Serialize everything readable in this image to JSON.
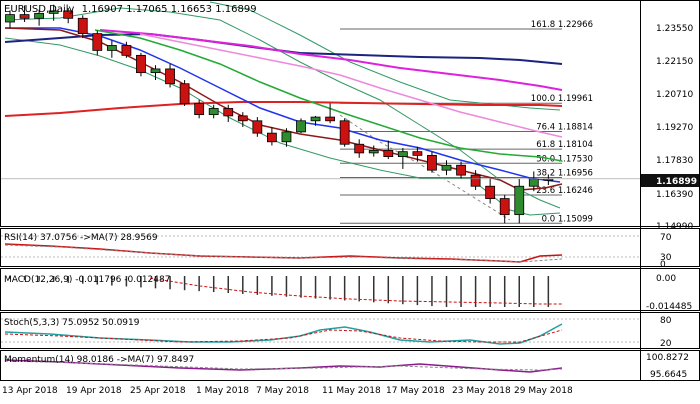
{
  "header": {
    "symbol": "EURUSD,Daily",
    "ohlc": "1.16907 1.17065 1.16653 1.16899"
  },
  "price_axis": {
    "labels": [
      "1.23550",
      "1.22150",
      "1.20710",
      "1.19270",
      "1.17830",
      "1.16390",
      "1.14990"
    ],
    "current_price": "1.16899"
  },
  "fibonacci": [
    {
      "label": "161.8 1.22966",
      "price": 1.22966
    },
    {
      "label": "100.0 1.19961",
      "price": 1.19961
    },
    {
      "label": "76.4 1.18814",
      "price": 1.18814
    },
    {
      "label": "61.8 1.18104",
      "price": 1.18104
    },
    {
      "label": "50.0 1.17530",
      "price": 1.1753
    },
    {
      "label": "38.2 1.16956",
      "price": 1.16956
    },
    {
      "label": "23.6 1.16246",
      "price": 1.16246
    },
    {
      "label": "0.0 1.15099",
      "price": 1.15099
    }
  ],
  "indicators": {
    "rsi": {
      "label": "RSI(14) 37.0756 ->MA(7) 28.9569",
      "axis": [
        "70",
        "30",
        "0"
      ]
    },
    "macd": {
      "label": "MACD(12,26,9) -0.011796 -0.012487",
      "axis": [
        "0.00",
        "-0.014485"
      ]
    },
    "stoch": {
      "label": "Stoch(5,3,3) 75.0952 50.0919",
      "axis": [
        "80",
        "20"
      ]
    },
    "momentum": {
      "label": "Momentum(14) 98.0186 ->MA(7) 97.8497",
      "axis": [
        "100.8272",
        "95.6645"
      ]
    }
  },
  "x_axis": {
    "labels": [
      "13 Apr 2018",
      "19 Apr 2018",
      "25 Apr 2018",
      "1 May 2018",
      "7 May 2018",
      "11 May 2018",
      "17 May 2018",
      "23 May 2018",
      "29 May 2018"
    ]
  },
  "colors": {
    "bull": "#2e8b2e",
    "bear": "#cc1111",
    "ma_red": "#dd2222",
    "ma_navy": "#1a237e",
    "ma_magenta": "#dd22dd",
    "ma_pink": "#ee88dd",
    "ma_green": "#22aa33",
    "ma_blue": "#2233ee",
    "ma_maroon": "#8b1a1a",
    "bollinger": "#339966"
  },
  "chart_data": {
    "type": "candlestick",
    "ylim": [
      1.1499,
      1.2406
    ],
    "candles": [
      {
        "o": 1.2325,
        "h": 1.2372,
        "l": 1.23,
        "c": 1.2355
      },
      {
        "o": 1.2355,
        "h": 1.2392,
        "l": 1.2325,
        "c": 1.234
      },
      {
        "o": 1.234,
        "h": 1.2375,
        "l": 1.231,
        "c": 1.236
      },
      {
        "o": 1.236,
        "h": 1.2395,
        "l": 1.233,
        "c": 1.237
      },
      {
        "o": 1.237,
        "h": 1.2382,
        "l": 1.232,
        "c": 1.234
      },
      {
        "o": 1.234,
        "h": 1.2352,
        "l": 1.226,
        "c": 1.2278
      },
      {
        "o": 1.2278,
        "h": 1.229,
        "l": 1.219,
        "c": 1.221
      },
      {
        "o": 1.221,
        "h": 1.225,
        "l": 1.218,
        "c": 1.223
      },
      {
        "o": 1.223,
        "h": 1.2245,
        "l": 1.218,
        "c": 1.219
      },
      {
        "o": 1.219,
        "h": 1.22,
        "l": 1.2105,
        "c": 1.212
      },
      {
        "o": 1.212,
        "h": 1.215,
        "l": 1.209,
        "c": 1.2135
      },
      {
        "o": 1.2135,
        "h": 1.2155,
        "l": 1.206,
        "c": 1.2075
      },
      {
        "o": 1.2075,
        "h": 1.209,
        "l": 1.1985,
        "c": 1.1995
      },
      {
        "o": 1.1995,
        "h": 1.201,
        "l": 1.1935,
        "c": 1.195
      },
      {
        "o": 1.195,
        "h": 1.199,
        "l": 1.1935,
        "c": 1.1975
      },
      {
        "o": 1.1975,
        "h": 1.199,
        "l": 1.192,
        "c": 1.1945
      },
      {
        "o": 1.1945,
        "h": 1.196,
        "l": 1.19,
        "c": 1.1925
      },
      {
        "o": 1.1925,
        "h": 1.194,
        "l": 1.186,
        "c": 1.1875
      },
      {
        "o": 1.1875,
        "h": 1.19,
        "l": 1.1825,
        "c": 1.184
      },
      {
        "o": 1.184,
        "h": 1.1895,
        "l": 1.182,
        "c": 1.188
      },
      {
        "o": 1.188,
        "h": 1.1935,
        "l": 1.1875,
        "c": 1.1925
      },
      {
        "o": 1.1925,
        "h": 1.1945,
        "l": 1.1905,
        "c": 1.194
      },
      {
        "o": 1.194,
        "h": 1.1995,
        "l": 1.1915,
        "c": 1.1925
      },
      {
        "o": 1.1925,
        "h": 1.1935,
        "l": 1.182,
        "c": 1.183
      },
      {
        "o": 1.183,
        "h": 1.185,
        "l": 1.1775,
        "c": 1.1795
      },
      {
        "o": 1.1795,
        "h": 1.1825,
        "l": 1.178,
        "c": 1.1805
      },
      {
        "o": 1.1805,
        "h": 1.1845,
        "l": 1.177,
        "c": 1.178
      },
      {
        "o": 1.178,
        "h": 1.1815,
        "l": 1.173,
        "c": 1.18
      },
      {
        "o": 1.18,
        "h": 1.182,
        "l": 1.176,
        "c": 1.1785
      },
      {
        "o": 1.1785,
        "h": 1.18,
        "l": 1.1715,
        "c": 1.1725
      },
      {
        "o": 1.1725,
        "h": 1.1765,
        "l": 1.1705,
        "c": 1.1745
      },
      {
        "o": 1.1745,
        "h": 1.176,
        "l": 1.169,
        "c": 1.1705
      },
      {
        "o": 1.1705,
        "h": 1.1725,
        "l": 1.1645,
        "c": 1.166
      },
      {
        "o": 1.166,
        "h": 1.169,
        "l": 1.159,
        "c": 1.161
      },
      {
        "o": 1.161,
        "h": 1.1625,
        "l": 1.151,
        "c": 1.1545
      },
      {
        "o": 1.1545,
        "h": 1.169,
        "l": 1.151,
        "c": 1.166
      },
      {
        "o": 1.166,
        "h": 1.172,
        "l": 1.164,
        "c": 1.169
      },
      {
        "o": 1.169,
        "h": 1.1707,
        "l": 1.1665,
        "c": 1.169
      }
    ]
  }
}
